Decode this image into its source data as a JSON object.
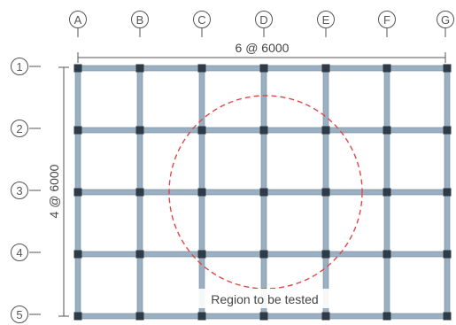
{
  "diagram": {
    "column_labels": [
      "A",
      "B",
      "C",
      "D",
      "E",
      "F",
      "G"
    ],
    "row_labels": [
      "1",
      "2",
      "3",
      "4",
      "5"
    ],
    "span_x_label": "6 @ 6000",
    "span_y_label": "4 @ 6000",
    "region_label": "Region to be tested",
    "colors": {
      "beam": "#9ab0c2",
      "beam_edge": "#6f8799",
      "column": "#2e3b47",
      "bubble": "#555555",
      "dimension": "#555555",
      "region": "#e04848"
    }
  }
}
